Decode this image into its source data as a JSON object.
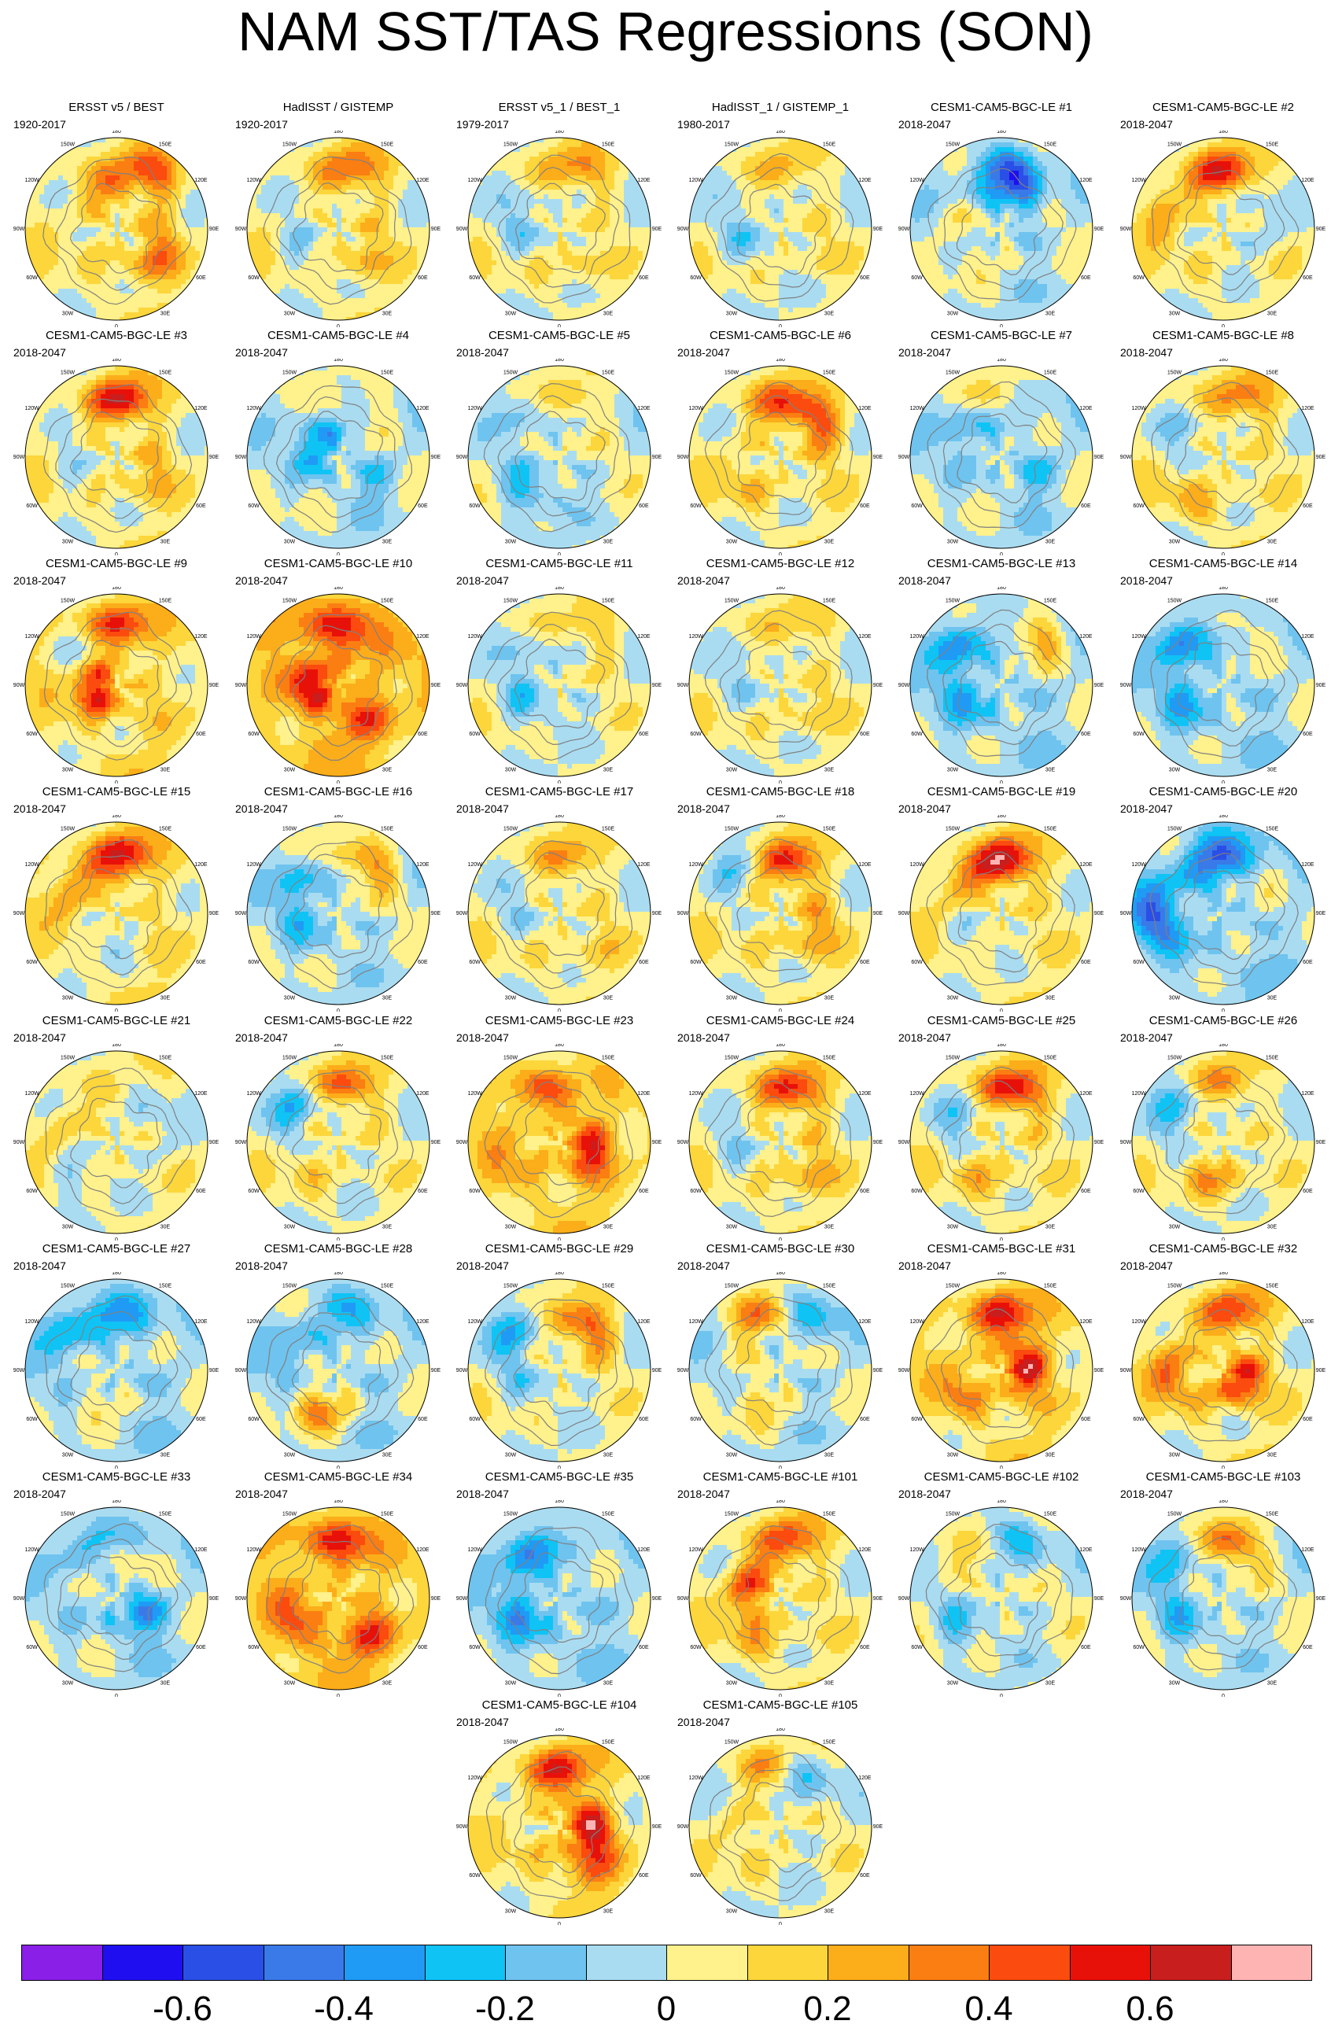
{
  "title": "NAM SST/TAS Regressions (SON)",
  "lon_labels": [
    "180",
    "150W",
    "150E",
    "120W",
    "120E",
    "90W",
    "90E",
    "60W",
    "60E",
    "30W",
    "30E",
    "0"
  ],
  "colors": {
    "coast": "#808080",
    "outline": "#000000",
    "palette": [
      "#8a1fe8",
      "#1f0ff0",
      "#2a4fe6",
      "#3a7ae8",
      "#1f9bf5",
      "#10c3f5",
      "#6fc3ef",
      "#a9dcf1",
      "#fff18b",
      "#fcd63b",
      "#fcad1a",
      "#fb7e12",
      "#fb4b0e",
      "#e81109",
      "#c81e1e",
      "#ffb4b4"
    ]
  },
  "colorbar": {
    "levels": [
      -0.7,
      -0.6,
      -0.5,
      -0.4,
      -0.3,
      -0.2,
      -0.1,
      0,
      0.1,
      0.2,
      0.3,
      0.4,
      0.5,
      0.6,
      0.7
    ],
    "tick_labels": [
      "-0.6",
      "-0.4",
      "-0.2",
      "0",
      "0.2",
      "0.4",
      "0.6"
    ],
    "tick_values": [
      -0.6,
      -0.4,
      -0.2,
      0,
      0.2,
      0.4,
      0.6
    ]
  },
  "panels": [
    {
      "title": "ERSST v5 / BEST",
      "period": "1920-2017",
      "base": 0.06,
      "features": [
        [
          150,
          0.72,
          0.42
        ],
        [
          200,
          0.48,
          0.18
        ],
        [
          55,
          0.55,
          0.3
        ]
      ]
    },
    {
      "title": "HadISST / GISTEMP",
      "period": "1920-2017",
      "base": 0.05,
      "features": [
        [
          165,
          0.7,
          0.35
        ],
        [
          300,
          0.5,
          -0.15
        ],
        [
          40,
          0.45,
          0.18
        ]
      ]
    },
    {
      "title": "ERSST v5_1 / BEST_1",
      "period": "1979-2017",
      "base": 0.03,
      "features": [
        [
          160,
          0.72,
          0.32
        ],
        [
          260,
          0.45,
          -0.15
        ],
        [
          30,
          0.5,
          0.12
        ]
      ]
    },
    {
      "title": "HadISST_1 / GISTEMP_1",
      "period": "1980-2017",
      "base": 0.02,
      "features": [
        [
          170,
          0.7,
          0.2
        ],
        [
          280,
          0.45,
          -0.15
        ],
        [
          60,
          0.5,
          0.1
        ]
      ]
    },
    {
      "title": "CESM1-CAM5-BGC-LE #1",
      "period": "2018-2047",
      "base": -0.02,
      "features": [
        [
          180,
          0.68,
          -0.42
        ],
        [
          160,
          0.45,
          -0.3
        ],
        [
          280,
          0.5,
          0.12
        ]
      ]
    },
    {
      "title": "CESM1-CAM5-BGC-LE #2",
      "period": "2018-2047",
      "base": 0.04,
      "features": [
        [
          180,
          0.66,
          0.5
        ],
        [
          255,
          0.7,
          0.28
        ],
        [
          100,
          0.5,
          -0.15
        ]
      ]
    },
    {
      "title": "CESM1-CAM5-BGC-LE #3",
      "period": "2018-2047",
      "base": 0.06,
      "features": [
        [
          175,
          0.66,
          0.52
        ],
        [
          290,
          0.55,
          -0.12
        ],
        [
          60,
          0.45,
          0.15
        ]
      ]
    },
    {
      "title": "CESM1-CAM5-BGC-LE #4",
      "period": "2018-2047",
      "base": -0.02,
      "features": [
        [
          240,
          0.3,
          -0.35
        ],
        [
          150,
          0.7,
          0.12
        ],
        [
          60,
          0.5,
          -0.15
        ]
      ]
    },
    {
      "title": "CESM1-CAM5-BGC-LE #5",
      "period": "2018-2047",
      "base": 0.0,
      "features": [
        [
          170,
          0.65,
          0.25
        ],
        [
          320,
          0.55,
          -0.25
        ],
        [
          210,
          0.6,
          -0.18
        ]
      ]
    },
    {
      "title": "CESM1-CAM5-BGC-LE #6",
      "period": "2018-2047",
      "base": 0.05,
      "features": [
        [
          180,
          0.65,
          0.32
        ],
        [
          135,
          0.6,
          0.42
        ],
        [
          300,
          0.5,
          0.12
        ]
      ]
    },
    {
      "title": "CESM1-CAM5-BGC-LE #7",
      "period": "2018-2047",
      "base": -0.03,
      "features": [
        [
          180,
          0.7,
          0.15
        ],
        [
          230,
          0.5,
          -0.2
        ],
        [
          70,
          0.45,
          -0.15
        ]
      ]
    },
    {
      "title": "CESM1-CAM5-BGC-LE #8",
      "period": "2018-2047",
      "base": 0.05,
      "features": [
        [
          160,
          0.7,
          0.3
        ],
        [
          240,
          0.55,
          -0.15
        ],
        [
          330,
          0.6,
          0.15
        ]
      ]
    },
    {
      "title": "CESM1-CAM5-BGC-LE #9",
      "period": "2018-2047",
      "base": 0.1,
      "features": [
        [
          180,
          0.7,
          0.4
        ],
        [
          280,
          0.25,
          0.48
        ],
        [
          230,
          0.6,
          -0.12
        ]
      ]
    },
    {
      "title": "CESM1-CAM5-BGC-LE #10",
      "period": "2018-2047",
      "base": 0.18,
      "features": [
        [
          180,
          0.7,
          0.45
        ],
        [
          270,
          0.3,
          0.4
        ],
        [
          40,
          0.5,
          0.25
        ]
      ]
    },
    {
      "title": "CESM1-CAM5-BGC-LE #11",
      "period": "2018-2047",
      "base": 0.02,
      "features": [
        [
          150,
          0.7,
          0.2
        ],
        [
          300,
          0.45,
          -0.2
        ],
        [
          220,
          0.5,
          -0.12
        ]
      ]
    },
    {
      "title": "CESM1-CAM5-BGC-LE #12",
      "period": "2018-2047",
      "base": 0.03,
      "features": [
        [
          160,
          0.7,
          0.18
        ],
        [
          50,
          0.5,
          0.12
        ],
        [
          260,
          0.45,
          -0.1
        ]
      ]
    },
    {
      "title": "CESM1-CAM5-BGC-LE #13",
      "period": "2018-2047",
      "base": -0.05,
      "features": [
        [
          145,
          0.7,
          0.3
        ],
        [
          230,
          0.65,
          -0.35
        ],
        [
          300,
          0.45,
          -0.2
        ]
      ]
    },
    {
      "title": "CESM1-CAM5-BGC-LE #14",
      "period": "2018-2047",
      "base": -0.05,
      "features": [
        [
          220,
          0.65,
          -0.4
        ],
        [
          170,
          0.68,
          0.2
        ],
        [
          300,
          0.5,
          -0.2
        ]
      ]
    },
    {
      "title": "CESM1-CAM5-BGC-LE #15",
      "period": "2018-2047",
      "base": 0.08,
      "features": [
        [
          175,
          0.68,
          0.48
        ],
        [
          240,
          0.55,
          0.25
        ],
        [
          330,
          0.4,
          -0.15
        ]
      ]
    },
    {
      "title": "CESM1-CAM5-BGC-LE #16",
      "period": "2018-2047",
      "base": -0.02,
      "features": [
        [
          150,
          0.68,
          0.4
        ],
        [
          230,
          0.55,
          -0.25
        ],
        [
          300,
          0.45,
          -0.15
        ]
      ]
    },
    {
      "title": "CESM1-CAM5-BGC-LE #17",
      "period": "2018-2047",
      "base": 0.04,
      "features": [
        [
          170,
          0.65,
          0.25
        ],
        [
          260,
          0.5,
          -0.12
        ],
        [
          40,
          0.6,
          0.12
        ]
      ]
    },
    {
      "title": "CESM1-CAM5-BGC-LE #18",
      "period": "2018-2047",
      "base": 0.05,
      "features": [
        [
          170,
          0.6,
          0.5
        ],
        [
          220,
          0.7,
          -0.2
        ],
        [
          60,
          0.45,
          0.22
        ]
      ]
    },
    {
      "title": "CESM1-CAM5-BGC-LE #19",
      "period": "2018-2047",
      "base": 0.06,
      "features": [
        [
          175,
          0.62,
          0.55
        ],
        [
          230,
          0.55,
          0.25
        ],
        [
          300,
          0.45,
          -0.15
        ]
      ]
    },
    {
      "title": "CESM1-CAM5-BGC-LE #20",
      "period": "2018-2047",
      "base": -0.08,
      "features": [
        [
          190,
          0.65,
          -0.42
        ],
        [
          270,
          0.75,
          -0.45
        ],
        [
          100,
          0.5,
          0.12
        ]
      ]
    },
    {
      "title": "CESM1-CAM5-BGC-LE #21",
      "period": "2018-2047",
      "base": 0.04,
      "features": [
        [
          260,
          0.6,
          0.2
        ],
        [
          300,
          0.6,
          -0.2
        ],
        [
          100,
          0.55,
          -0.1
        ]
      ]
    },
    {
      "title": "CESM1-CAM5-BGC-LE #22",
      "period": "2018-2047",
      "base": 0.03,
      "features": [
        [
          170,
          0.65,
          0.42
        ],
        [
          230,
          0.6,
          -0.3
        ],
        [
          300,
          0.45,
          0.12
        ]
      ]
    },
    {
      "title": "CESM1-CAM5-BGC-LE #23",
      "period": "2018-2047",
      "base": 0.12,
      "features": [
        [
          200,
          0.65,
          0.3
        ],
        [
          80,
          0.4,
          0.45
        ],
        [
          300,
          0.7,
          0.15
        ]
      ]
    },
    {
      "title": "CESM1-CAM5-BGC-LE #24",
      "period": "2018-2047",
      "base": 0.05,
      "features": [
        [
          165,
          0.62,
          0.48
        ],
        [
          280,
          0.55,
          -0.15
        ],
        [
          40,
          0.5,
          0.2
        ]
      ]
    },
    {
      "title": "CESM1-CAM5-BGC-LE #25",
      "period": "2018-2047",
      "base": 0.05,
      "features": [
        [
          165,
          0.62,
          0.55
        ],
        [
          240,
          0.55,
          -0.2
        ],
        [
          330,
          0.45,
          0.15
        ]
      ]
    },
    {
      "title": "CESM1-CAM5-BGC-LE #26",
      "period": "2018-2047",
      "base": 0.02,
      "features": [
        [
          180,
          0.68,
          0.3
        ],
        [
          230,
          0.65,
          -0.25
        ],
        [
          350,
          0.45,
          0.25
        ]
      ]
    },
    {
      "title": "CESM1-CAM5-BGC-LE #27",
      "period": "2018-2047",
      "base": -0.05,
      "features": [
        [
          180,
          0.65,
          -0.25
        ],
        [
          230,
          0.7,
          -0.25
        ],
        [
          320,
          0.45,
          0.12
        ]
      ]
    },
    {
      "title": "CESM1-CAM5-BGC-LE #28",
      "period": "2018-2047",
      "base": -0.04,
      "features": [
        [
          180,
          0.7,
          -0.2
        ],
        [
          330,
          0.5,
          0.35
        ],
        [
          250,
          0.55,
          -0.2
        ]
      ]
    },
    {
      "title": "CESM1-CAM5-BGC-LE #29",
      "period": "2018-2047",
      "base": 0.02,
      "features": [
        [
          150,
          0.6,
          0.5
        ],
        [
          230,
          0.65,
          -0.3
        ],
        [
          300,
          0.45,
          -0.1
        ]
      ]
    },
    {
      "title": "CESM1-CAM5-BGC-LE #30",
      "period": "2018-2047",
      "base": -0.02,
      "features": [
        [
          200,
          0.65,
          0.35
        ],
        [
          150,
          0.7,
          -0.2
        ],
        [
          320,
          0.45,
          0.15
        ]
      ]
    },
    {
      "title": "CESM1-CAM5-BGC-LE #31",
      "period": "2018-2047",
      "base": 0.1,
      "features": [
        [
          180,
          0.65,
          0.45
        ],
        [
          100,
          0.3,
          0.5
        ],
        [
          300,
          0.55,
          0.2
        ]
      ]
    },
    {
      "title": "CESM1-CAM5-BGC-LE #32",
      "period": "2018-2047",
      "base": 0.06,
      "features": [
        [
          170,
          0.68,
          0.4
        ],
        [
          60,
          0.25,
          0.5
        ],
        [
          270,
          0.6,
          0.35
        ]
      ]
    },
    {
      "title": "CESM1-CAM5-BGC-LE #33",
      "period": "2018-2047",
      "base": -0.04,
      "features": [
        [
          200,
          0.68,
          -0.3
        ],
        [
          170,
          0.5,
          0.2
        ],
        [
          60,
          0.35,
          -0.3
        ]
      ]
    },
    {
      "title": "CESM1-CAM5-BGC-LE #34",
      "period": "2018-2047",
      "base": 0.15,
      "features": [
        [
          180,
          0.68,
          0.42
        ],
        [
          300,
          0.6,
          0.3
        ],
        [
          40,
          0.55,
          0.3
        ]
      ]
    },
    {
      "title": "CESM1-CAM5-BGC-LE #35",
      "period": "2018-2047",
      "base": -0.06,
      "features": [
        [
          210,
          0.62,
          -0.4
        ],
        [
          170,
          0.7,
          0.15
        ],
        [
          300,
          0.5,
          -0.25
        ]
      ]
    },
    {
      "title": "CESM1-CAM5-BGC-LE #101",
      "period": "2018-2047",
      "base": 0.05,
      "features": [
        [
          170,
          0.68,
          0.4
        ],
        [
          250,
          0.4,
          0.4
        ],
        [
          330,
          0.55,
          0.15
        ]
      ]
    },
    {
      "title": "CESM1-CAM5-BGC-LE #102",
      "period": "2018-2047",
      "base": 0.0,
      "features": [
        [
          170,
          0.7,
          -0.2
        ],
        [
          230,
          0.65,
          0.15
        ],
        [
          300,
          0.6,
          -0.2
        ]
      ]
    },
    {
      "title": "CESM1-CAM5-BGC-LE #103",
      "period": "2018-2047",
      "base": -0.02,
      "features": [
        [
          170,
          0.65,
          0.5
        ],
        [
          230,
          0.7,
          -0.25
        ],
        [
          300,
          0.55,
          -0.2
        ]
      ]
    },
    {
      "title": "CESM1-CAM5-BGC-LE #104",
      "period": "2018-2047",
      "base": 0.08,
      "features": [
        [
          180,
          0.65,
          0.45
        ],
        [
          90,
          0.35,
          0.5
        ],
        [
          40,
          0.6,
          0.3
        ]
      ]
    },
    {
      "title": "CESM1-CAM5-BGC-LE #105",
      "period": "2018-2047",
      "base": 0.02,
      "features": [
        [
          190,
          0.7,
          0.25
        ],
        [
          160,
          0.65,
          -0.2
        ],
        [
          280,
          0.5,
          0.15
        ]
      ]
    }
  ]
}
